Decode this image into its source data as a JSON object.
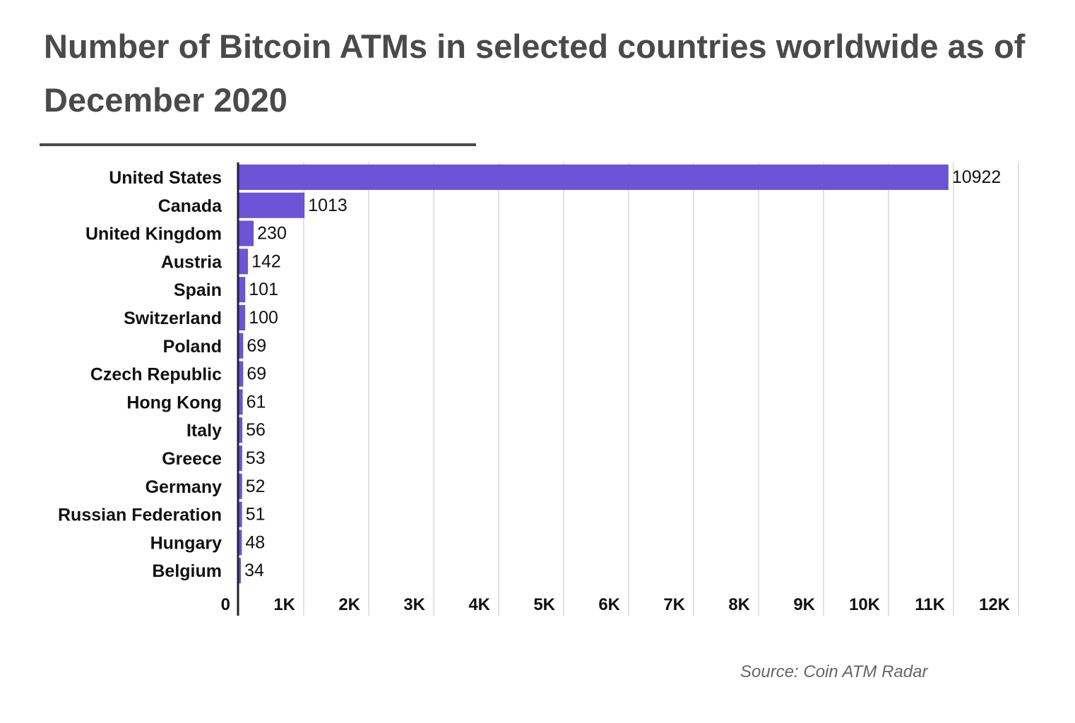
{
  "chart_data": {
    "type": "bar",
    "orientation": "horizontal",
    "title": "Number of Bitcoin ATMs in selected countries worldwide as of December 2020",
    "source": "Source: Coin ATM Radar",
    "categories": [
      "United States",
      "Canada",
      "United Kingdom",
      "Austria",
      "Spain",
      "Switzerland",
      "Poland",
      "Czech Republic",
      "Hong Kong",
      "Italy",
      "Greece",
      "Germany",
      "Russian Federation",
      "Hungary",
      "Belgium"
    ],
    "values": [
      10922,
      1013,
      230,
      142,
      101,
      100,
      69,
      69,
      61,
      56,
      53,
      52,
      51,
      48,
      34
    ],
    "xlim": [
      0,
      12000
    ],
    "xticks": [
      0,
      1000,
      2000,
      3000,
      4000,
      5000,
      6000,
      7000,
      8000,
      9000,
      10000,
      11000,
      12000
    ],
    "xtick_labels": [
      "0",
      "1K",
      "2K",
      "3K",
      "4K",
      "5K",
      "6K",
      "7K",
      "8K",
      "9K",
      "10K",
      "11K",
      "12K"
    ],
    "xlabel": "",
    "ylabel": "",
    "grid": true,
    "legend": "none",
    "bar_color": "#6b54d6"
  }
}
